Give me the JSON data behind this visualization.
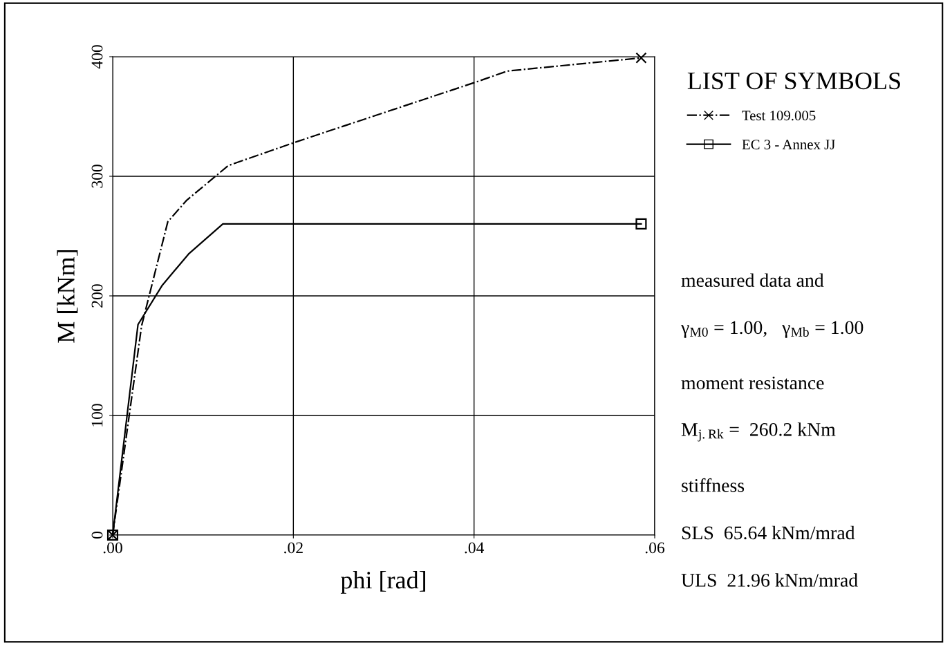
{
  "chart_data": {
    "type": "line",
    "xlabel": "phi [rad]",
    "ylabel": "M [kNm]",
    "legend_title": "LIST OF SYMBOLS",
    "legend": "top right",
    "series": [
      {
        "name": "Test 109.005",
        "color": "#000000",
        "line_style": "dashdot",
        "x": [
          0,
          0.0032,
          0.0061,
          0.0082,
          0.0128,
          0.0204,
          0.0403,
          0.0437,
          0.0585
        ],
        "values": [
          0,
          175,
          262,
          280,
          309,
          329,
          379,
          388,
          399
        ]
      },
      {
        "type": "scatter",
        "color": "#000000",
        "marker": "cross",
        "x": [
          0,
          0.0585
        ],
        "values": [
          0,
          399
        ]
      },
      {
        "name": "EC 3 - Annex JJ",
        "color": "#000000",
        "line_style": "solid",
        "x": [
          0,
          0.0028,
          0.0055,
          0.0084,
          0.0122,
          0.0585
        ],
        "values": [
          0,
          176,
          209,
          235,
          260.2,
          260.2
        ]
      },
      {
        "type": "scatter",
        "color": "#000000",
        "marker": "square",
        "x": [
          0,
          0.0585
        ],
        "values": [
          0,
          260.2
        ]
      }
    ],
    "xlim": [
      0,
      0.06
    ],
    "ylim": [
      0,
      400
    ],
    "xticks": [
      {
        "value": 0,
        "label": ".00"
      },
      {
        "value": 0.02,
        "label": ".02"
      },
      {
        "value": 0.04,
        "label": ".04"
      },
      {
        "value": 0.06,
        "label": ".06"
      }
    ],
    "yticks": [
      0,
      100,
      200,
      300,
      400
    ],
    "grid": true,
    "annotations": [
      "measured data and",
      "γ$_{M0}$ = 1.00,   γ$_{Mb}$ = 1.00",
      "moment resistance",
      "M$_{j.Rk}$ =  260.2 kNm",
      "stiffness",
      "SLS  65.64 kNm/mrad",
      "ULS  21.96 kNm/mrad"
    ]
  }
}
